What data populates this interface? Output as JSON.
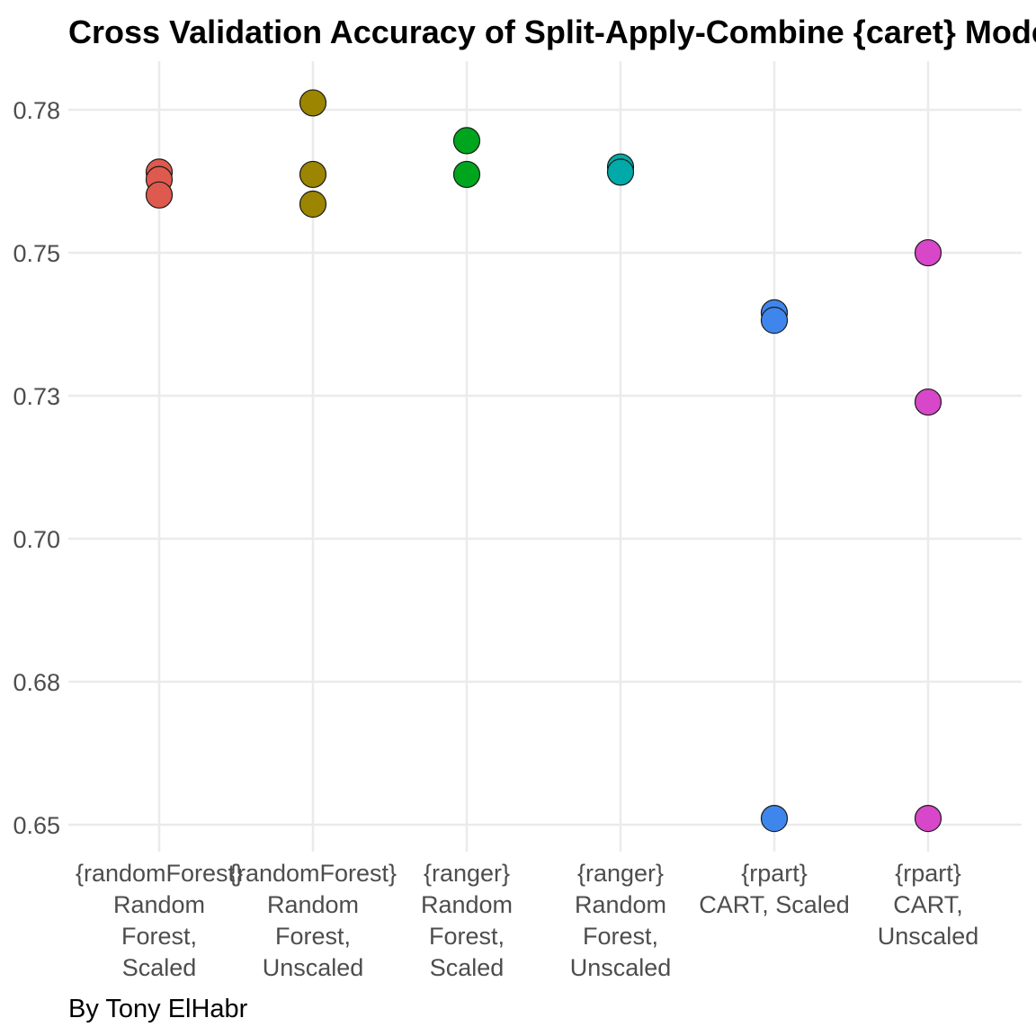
{
  "chart_data": {
    "type": "scatter",
    "title": "Cross Validation Accuracy of Split-Apply-Combine {caret} Models",
    "caption": "By Tony ElHabr",
    "xlabel": "",
    "ylabel": "",
    "ylim": [
      0.6453,
      0.7835
    ],
    "yticks": [
      0.65,
      0.675,
      0.7,
      0.725,
      0.75,
      0.775
    ],
    "ytick_labels": [
      "0.65",
      "0.68",
      "0.70",
      "0.73",
      "0.75",
      "0.78"
    ],
    "grid": true,
    "legend": "none",
    "categories": [
      [
        "{randomForest}",
        "Random",
        "Forest,",
        "Scaled"
      ],
      [
        "{randomForest}",
        "Random",
        "Forest,",
        "Unscaled"
      ],
      [
        "{ranger}",
        "Random",
        "Forest,",
        "Scaled"
      ],
      [
        "{ranger}",
        "Random",
        "Forest,",
        "Unscaled"
      ],
      [
        "{rpart}",
        "CART, Scaled"
      ],
      [
        "{rpart}",
        "CART,",
        "Unscaled"
      ]
    ],
    "colors": [
      "#de5a4e",
      "#9c8500",
      "#00a51e",
      "#00aaa8",
      "#3f86ec",
      "#d846c9"
    ],
    "series": [
      {
        "values": [
          0.7641,
          0.7628,
          0.7601
        ]
      },
      {
        "values": [
          0.7762,
          0.7637,
          0.7585
        ]
      },
      {
        "values": [
          0.7696,
          0.7637
        ]
      },
      {
        "values": [
          0.765,
          0.7641
        ]
      },
      {
        "values": [
          0.7395,
          0.7382,
          0.6511
        ]
      },
      {
        "values": [
          0.75,
          0.7239,
          0.6511
        ]
      }
    ]
  }
}
